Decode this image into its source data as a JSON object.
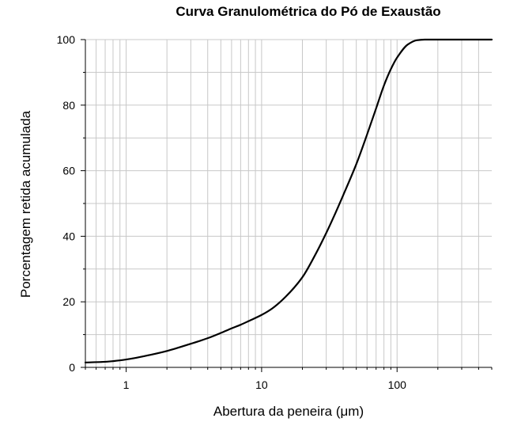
{
  "chart_data": {
    "type": "line",
    "title": "Curva Granulométrica do Pó de Exaustão",
    "xlabel": "Abertura da peneira (μm)",
    "ylabel": "Porcentagem retida acumulada",
    "xscale": "log",
    "xlim": [
      0.5,
      500
    ],
    "ylim": [
      0,
      100
    ],
    "grid": true,
    "x_tick_labels": [
      "1",
      "10",
      "100"
    ],
    "y_tick_labels": [
      "0",
      "20",
      "40",
      "60",
      "80",
      "100"
    ],
    "series": [
      {
        "x": [
          0.5,
          0.7,
          1,
          1.5,
          2,
          3,
          4,
          5,
          6,
          7,
          8,
          10,
          12,
          15,
          20,
          25,
          30,
          35,
          40,
          50,
          60,
          70,
          80,
          90,
          100,
          120,
          140,
          160,
          200,
          300,
          500
        ],
        "y": [
          1.5,
          1.7,
          2.4,
          3.8,
          5.0,
          7.2,
          8.9,
          10.5,
          11.9,
          13.0,
          14.1,
          16.0,
          18.0,
          21.5,
          27.5,
          34.5,
          41.0,
          47.0,
          52.5,
          62.0,
          71.0,
          79.0,
          86.0,
          91.0,
          94.5,
          98.5,
          99.8,
          100,
          100,
          100,
          100
        ]
      }
    ]
  }
}
